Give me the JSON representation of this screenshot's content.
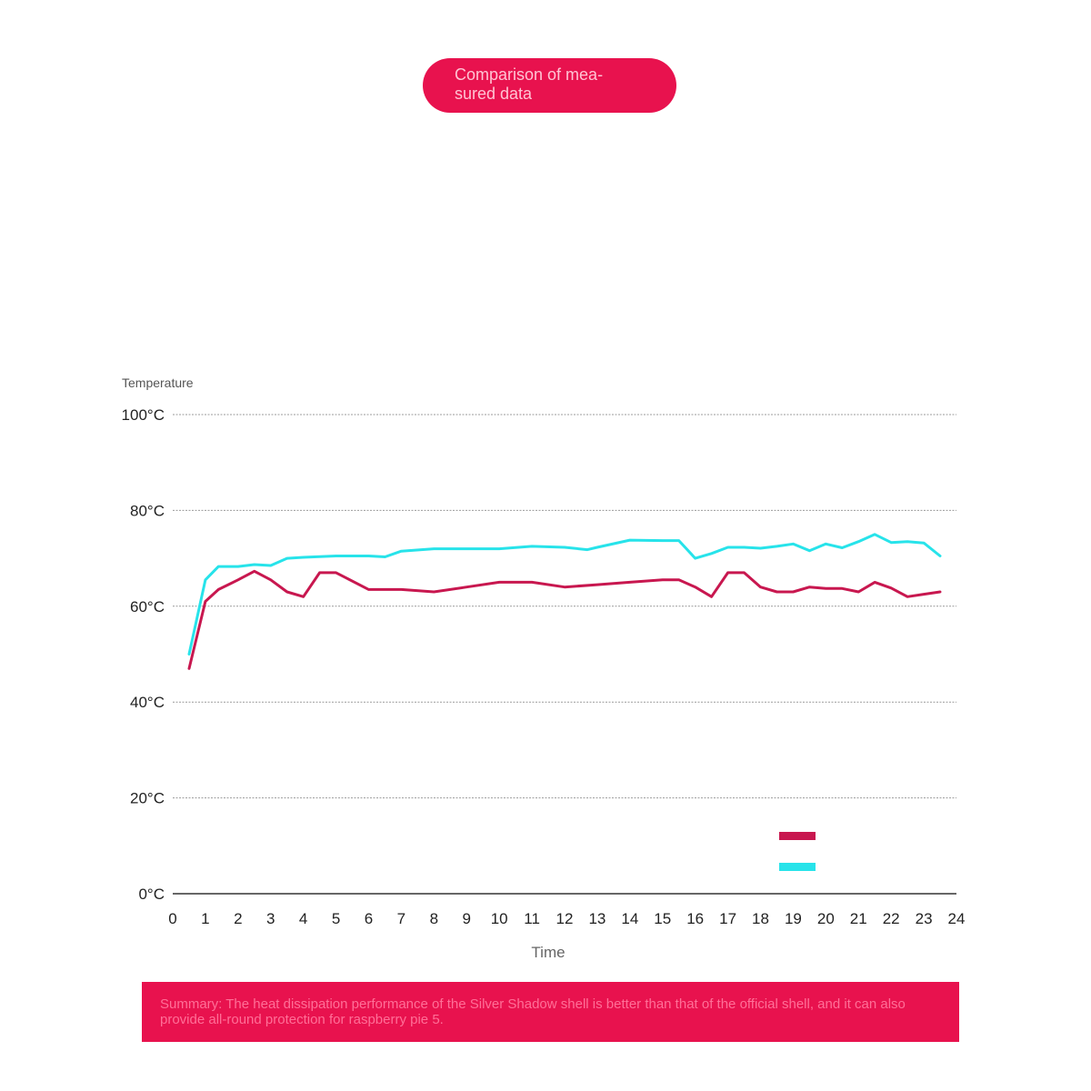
{
  "header": {
    "title": "Comparison of mea-\nsured data"
  },
  "chart_data": {
    "type": "line",
    "title": "Comparison of measured data",
    "xlabel": "Time",
    "ylabel": "Temperature",
    "xlim": [
      0,
      24
    ],
    "ylim": [
      0,
      100
    ],
    "x_ticks": [
      "0",
      "1",
      "2",
      "3",
      "4",
      "5",
      "6",
      "7",
      "8",
      "9",
      "10",
      "11",
      "12",
      "13",
      "14",
      "15",
      "16",
      "17",
      "18",
      "19",
      "20",
      "21",
      "22",
      "23",
      "24"
    ],
    "y_ticks": [
      "0°C",
      "20°C",
      "40°C",
      "60°C",
      "80°C",
      "100°C"
    ],
    "grid": true,
    "legend_position": "bottom-right",
    "series": [
      {
        "color": "#c8174f",
        "x": [
          0.5,
          1,
          1.4,
          2,
          2.5,
          3,
          3.5,
          4,
          4.5,
          5,
          6,
          6.5,
          7,
          8,
          9,
          10,
          11,
          12,
          13,
          14,
          15,
          15.5,
          16,
          16.5,
          17,
          17.5,
          18,
          18.5,
          19,
          19.5,
          20,
          20.5,
          21,
          21.5,
          22,
          22.5,
          23,
          23.5
        ],
        "values": [
          47,
          61,
          63.5,
          65.5,
          67.3,
          65.5,
          63,
          62,
          67,
          67,
          63.5,
          63.5,
          63.5,
          63,
          64,
          65,
          65,
          64,
          64.5,
          65,
          65.5,
          65.5,
          64,
          62,
          67,
          67,
          64,
          63,
          63,
          64,
          63.7,
          63.7,
          63,
          65,
          63.8,
          62,
          62.5,
          63
        ]
      },
      {
        "color": "#27e3ea",
        "x": [
          0.5,
          1,
          1.4,
          2,
          2.5,
          3,
          3.5,
          4,
          5,
          6,
          6.5,
          7,
          8,
          9,
          10,
          11,
          12,
          12.7,
          13,
          14,
          15,
          15.5,
          16,
          16.5,
          17,
          17.5,
          18,
          18.5,
          19,
          19.5,
          20,
          20.5,
          21,
          21.5,
          22,
          22.5,
          23,
          23.5
        ],
        "values": [
          50,
          65.5,
          68.3,
          68.3,
          68.7,
          68.5,
          70,
          70.2,
          70.5,
          70.5,
          70.3,
          71.5,
          72,
          72,
          72,
          72.5,
          72.3,
          71.8,
          72.3,
          73.8,
          73.7,
          73.7,
          70,
          71,
          72.3,
          72.3,
          72.1,
          72.5,
          73,
          71.6,
          73,
          72.2,
          73.5,
          75,
          73.3,
          73.5,
          73.2,
          70.5
        ]
      }
    ]
  },
  "summary": {
    "text": "Summary: The heat dissipation performance of the Silver Shadow shell is better than that of the official shell, and it can also provide all-round protection for raspberry pie 5."
  }
}
